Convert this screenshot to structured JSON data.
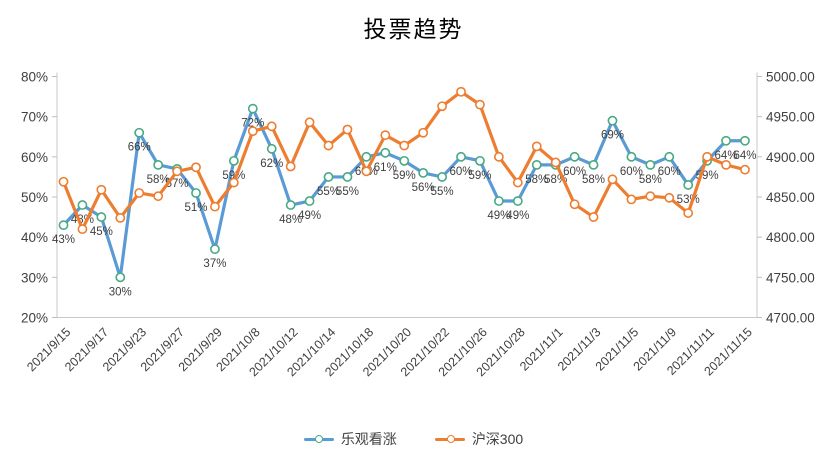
{
  "title": "投票趋势",
  "chart_data": {
    "type": "line",
    "title": "投票趋势",
    "grid": false,
    "legend_position": "bottom",
    "x_tick_labels": [
      "2021/9/15",
      "2021/9/17",
      "2021/9/23",
      "2021/9/27",
      "2021/9/29",
      "2021/10/8",
      "2021/10/12",
      "2021/10/14",
      "2021/10/18",
      "2021/10/20",
      "2021/10/22",
      "2021/10/26",
      "2021/10/28",
      "2021/11/1",
      "2021/11/3",
      "2021/11/5",
      "2021/11/9",
      "2021/11/11",
      "2021/11/15"
    ],
    "x_tick_every": 2,
    "left_axis": {
      "min": 20,
      "max": 80,
      "tick_labels": [
        "20%",
        "30%",
        "40%",
        "50%",
        "60%",
        "70%",
        "80%"
      ],
      "tick_values": [
        20,
        30,
        40,
        50,
        60,
        70,
        80
      ]
    },
    "right_axis": {
      "min": 4700,
      "max": 5000,
      "tick_labels": [
        "4700.00",
        "4750.00",
        "4800.00",
        "4850.00",
        "4900.00",
        "4950.00",
        "5000.00"
      ],
      "tick_values": [
        4700,
        4750,
        4800,
        4850,
        4900,
        4950,
        5000
      ]
    },
    "series": [
      {
        "name": "乐观看涨",
        "axis": "left",
        "color": "#5B9BD5",
        "marker_stroke": "#48A983",
        "data_labels": true,
        "label_suffix": "%",
        "values": [
          43,
          48,
          45,
          30,
          66,
          58,
          57,
          51,
          37,
          59,
          72,
          62,
          48,
          49,
          55,
          55,
          60,
          61,
          59,
          56,
          55,
          60,
          59,
          49,
          49,
          58,
          58,
          60,
          58,
          69,
          60,
          58,
          60,
          53,
          59,
          64,
          64
        ]
      },
      {
        "name": "沪深300",
        "axis": "right",
        "color": "#ED7D31",
        "marker_stroke": "#ED7D31",
        "data_labels": false,
        "values": [
          4869,
          4810,
          4859,
          4824,
          4855,
          4851,
          4882,
          4887,
          4838,
          4868,
          4932,
          4938,
          4888,
          4943,
          4914,
          4934,
          4882,
          4927,
          4914,
          4930,
          4963,
          4981,
          4965,
          4900,
          4868,
          4913,
          4893,
          4841,
          4825,
          4872,
          4847,
          4851,
          4849,
          4830,
          4900,
          4890,
          4884
        ]
      }
    ],
    "colors": {
      "axis_line": "#C9C9C9",
      "tick_mark": "#BFBFBF",
      "axis_text": "#404040",
      "data_label_text": "#404040"
    }
  }
}
